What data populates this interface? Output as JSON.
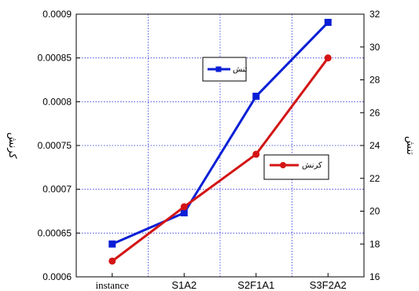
{
  "chart_data": {
    "type": "line",
    "categories": [
      "instance",
      "S1A2",
      "S2F1A1",
      "S3F2A2"
    ],
    "y_left": {
      "label": "کرنش",
      "range": [
        0.0006,
        0.0009
      ],
      "ticks": [
        "0.0006",
        "0.00065",
        "0.0007",
        "0.00075",
        "0.0008",
        "0.00085",
        "0.0009"
      ],
      "tick_values": [
        0.0006,
        0.00065,
        0.0007,
        0.00075,
        0.0008,
        0.00085,
        0.0009
      ]
    },
    "y_right": {
      "label": "تنش",
      "range": [
        16,
        32
      ],
      "ticks": [
        "16",
        "18",
        "20",
        "22",
        "24",
        "26",
        "28",
        "30",
        "32"
      ],
      "tick_values": [
        16,
        18,
        20,
        22,
        24,
        26,
        28,
        30,
        32
      ]
    },
    "series": [
      {
        "name": "تنش",
        "axis": "right",
        "color": "#0a1fd6",
        "marker": "square",
        "values": [
          18.0,
          19.9,
          27.0,
          31.5
        ]
      },
      {
        "name": "کرنش",
        "axis": "left",
        "color": "#d41414",
        "marker": "circle",
        "values": [
          0.000618,
          0.00068,
          0.00074,
          0.00085
        ]
      }
    ],
    "grid": true
  }
}
